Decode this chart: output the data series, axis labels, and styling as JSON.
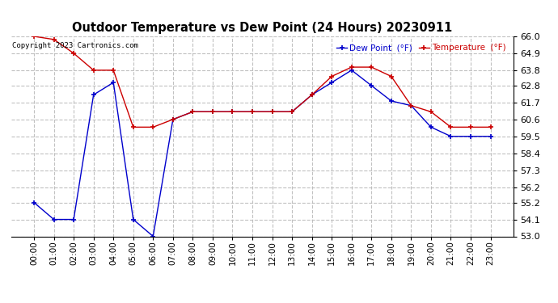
{
  "title": "Outdoor Temperature vs Dew Point (24 Hours) 20230911",
  "copyright": "Copyright 2023 Cartronics.com",
  "legend_dew": "Dew Point  (°F)",
  "legend_temp": "Temperature  (°F)",
  "x_labels": [
    "00:00",
    "01:00",
    "02:00",
    "03:00",
    "04:00",
    "05:00",
    "06:00",
    "07:00",
    "08:00",
    "09:00",
    "10:00",
    "11:00",
    "12:00",
    "13:00",
    "14:00",
    "15:00",
    "16:00",
    "17:00",
    "18:00",
    "19:00",
    "20:00",
    "21:00",
    "22:00",
    "23:00"
  ],
  "temperature": [
    66.0,
    65.8,
    64.9,
    63.8,
    63.8,
    60.1,
    60.1,
    60.6,
    61.1,
    61.1,
    61.1,
    61.1,
    61.1,
    61.1,
    62.2,
    63.4,
    64.0,
    64.0,
    63.4,
    61.5,
    61.1,
    60.1,
    60.1,
    60.1
  ],
  "dew_point": [
    55.2,
    54.1,
    54.1,
    62.2,
    63.0,
    54.1,
    53.0,
    60.6,
    61.1,
    61.1,
    61.1,
    61.1,
    61.1,
    61.1,
    62.2,
    63.0,
    63.8,
    62.8,
    61.8,
    61.5,
    60.1,
    59.5,
    59.5,
    59.5
  ],
  "ylim_min": 53.0,
  "ylim_max": 66.0,
  "yticks": [
    53.0,
    54.1,
    55.2,
    56.2,
    57.3,
    58.4,
    59.5,
    60.6,
    61.7,
    62.8,
    63.8,
    64.9,
    66.0
  ],
  "temp_color": "#cc0000",
  "dew_color": "#0000cc",
  "grid_color": "#bbbbbb",
  "bg_color": "#ffffff"
}
